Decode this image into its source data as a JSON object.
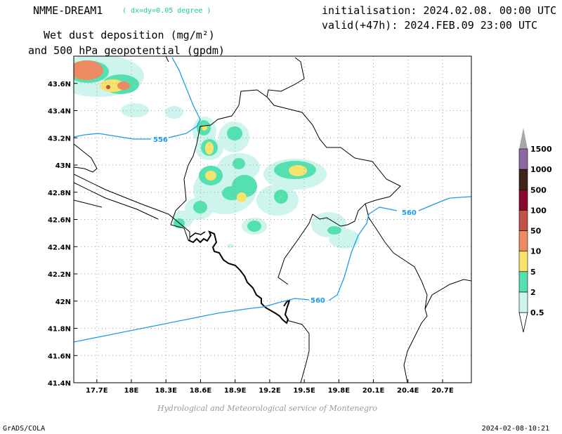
{
  "header": {
    "model": "NMME-DREAM1",
    "resolution": "( dx=dy=0.05 degree )",
    "title_line1": "Wet dust deposition (mg/m²)",
    "title_line2": "and 500 hPa geopotential (gpdm)",
    "init": "initialisation: 2024.02.08. 00:00 UTC",
    "valid": "valid(+47h): 2024.FEB.09 23:00 UTC"
  },
  "footer": {
    "credit": "Hydrological and Meteorological service of Montenegro",
    "software": "GrADS/COLA",
    "timestamp": "2024-02-08-10:21"
  },
  "map": {
    "lon_range": [
      17.5,
      20.95
    ],
    "lat_range": [
      41.4,
      43.8
    ],
    "lon_ticks": [
      "17.7E",
      "18E",
      "18.3E",
      "18.6E",
      "18.9E",
      "19.2E",
      "19.5E",
      "19.8E",
      "20.1E",
      "20.4E",
      "20.7E"
    ],
    "lon_tick_values": [
      17.7,
      18.0,
      18.3,
      18.6,
      18.9,
      19.2,
      19.5,
      19.8,
      20.1,
      20.4,
      20.7
    ],
    "lat_ticks": [
      "41.4N",
      "41.6N",
      "41.8N",
      "42N",
      "42.2N",
      "42.4N",
      "42.6N",
      "42.8N",
      "43N",
      "43.2N",
      "43.4N",
      "43.6N"
    ],
    "lat_tick_values": [
      41.4,
      41.6,
      41.8,
      42.0,
      42.2,
      42.4,
      42.6,
      42.8,
      43.0,
      43.2,
      43.4,
      43.6
    ],
    "contour_labels": [
      "556",
      "560",
      "560"
    ],
    "contour_color": "#1e9be8",
    "grid": true
  },
  "colorbar": {
    "labels": [
      "0.5",
      "2",
      "5",
      "10",
      "50",
      "100",
      "500",
      "1000",
      "1500"
    ],
    "colors": [
      "#cdf5ee",
      "#55e0b0",
      "#f7e36b",
      "#ee8a62",
      "#c25148",
      "#8a0a2d",
      "#3e2418",
      "#8b6aa3"
    ],
    "end_color": "#a8a8a8"
  }
}
